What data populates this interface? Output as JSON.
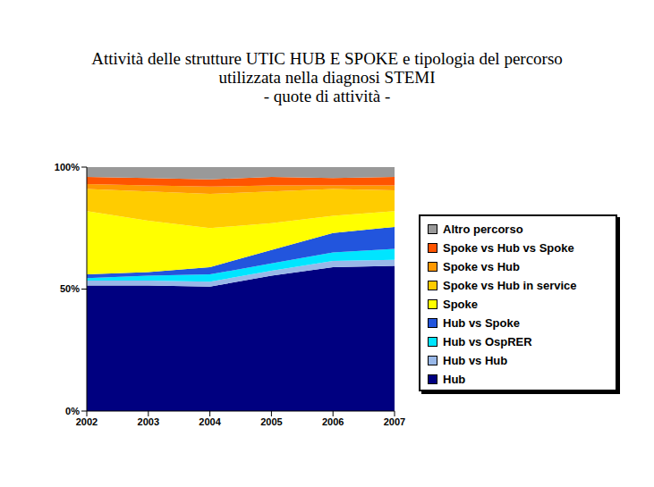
{
  "chart_data": {
    "type": "area",
    "stacked": true,
    "title": "Attività delle strutture UTIC HUB E SPOKE e tipologia del percorso\nutilizzata nella diagnosi STEMI\n- quote di attività -",
    "categories": [
      "2002",
      "2003",
      "2004",
      "2005",
      "2006",
      "2007"
    ],
    "series": [
      {
        "name": "Hub",
        "color": "#000080",
        "values": [
          51.5,
          51.5,
          51,
          55.5,
          59,
          59.5
        ]
      },
      {
        "name": "Hub vs Hub",
        "color": "#99b8e8",
        "values": [
          2,
          2,
          2,
          2,
          2.5,
          2.5
        ]
      },
      {
        "name": "Hub vs OspRER",
        "color": "#00e5ff",
        "values": [
          1,
          2,
          3,
          3,
          3.5,
          4.5
        ]
      },
      {
        "name": "Hub vs Spoke",
        "color": "#2255dd",
        "values": [
          1.5,
          1.5,
          3,
          5.5,
          8,
          9
        ]
      },
      {
        "name": "Spoke",
        "color": "#ffff00",
        "values": [
          26,
          21,
          16,
          11,
          7,
          6.5
        ]
      },
      {
        "name": "Spoke vs Hub in service",
        "color": "#ffcc00",
        "values": [
          9,
          12,
          14,
          13,
          11,
          8.5
        ]
      },
      {
        "name": "Spoke vs Hub",
        "color": "#ff9900",
        "values": [
          2,
          2.5,
          3,
          2.5,
          1.5,
          2
        ]
      },
      {
        "name": "Spoke vs Hub vs Spoke",
        "color": "#ff5500",
        "values": [
          3,
          3,
          3,
          3.5,
          3,
          3.5
        ]
      },
      {
        "name": "Altro percorso",
        "color": "#999999",
        "values": [
          4,
          4.5,
          5,
          4,
          4.5,
          4
        ]
      }
    ],
    "ylim": [
      0,
      100
    ],
    "yticks": [
      {
        "value": 0,
        "label": "0%"
      },
      {
        "value": 50,
        "label": "50%"
      },
      {
        "value": 100,
        "label": "100%"
      }
    ],
    "grid": false,
    "legend": "right"
  }
}
